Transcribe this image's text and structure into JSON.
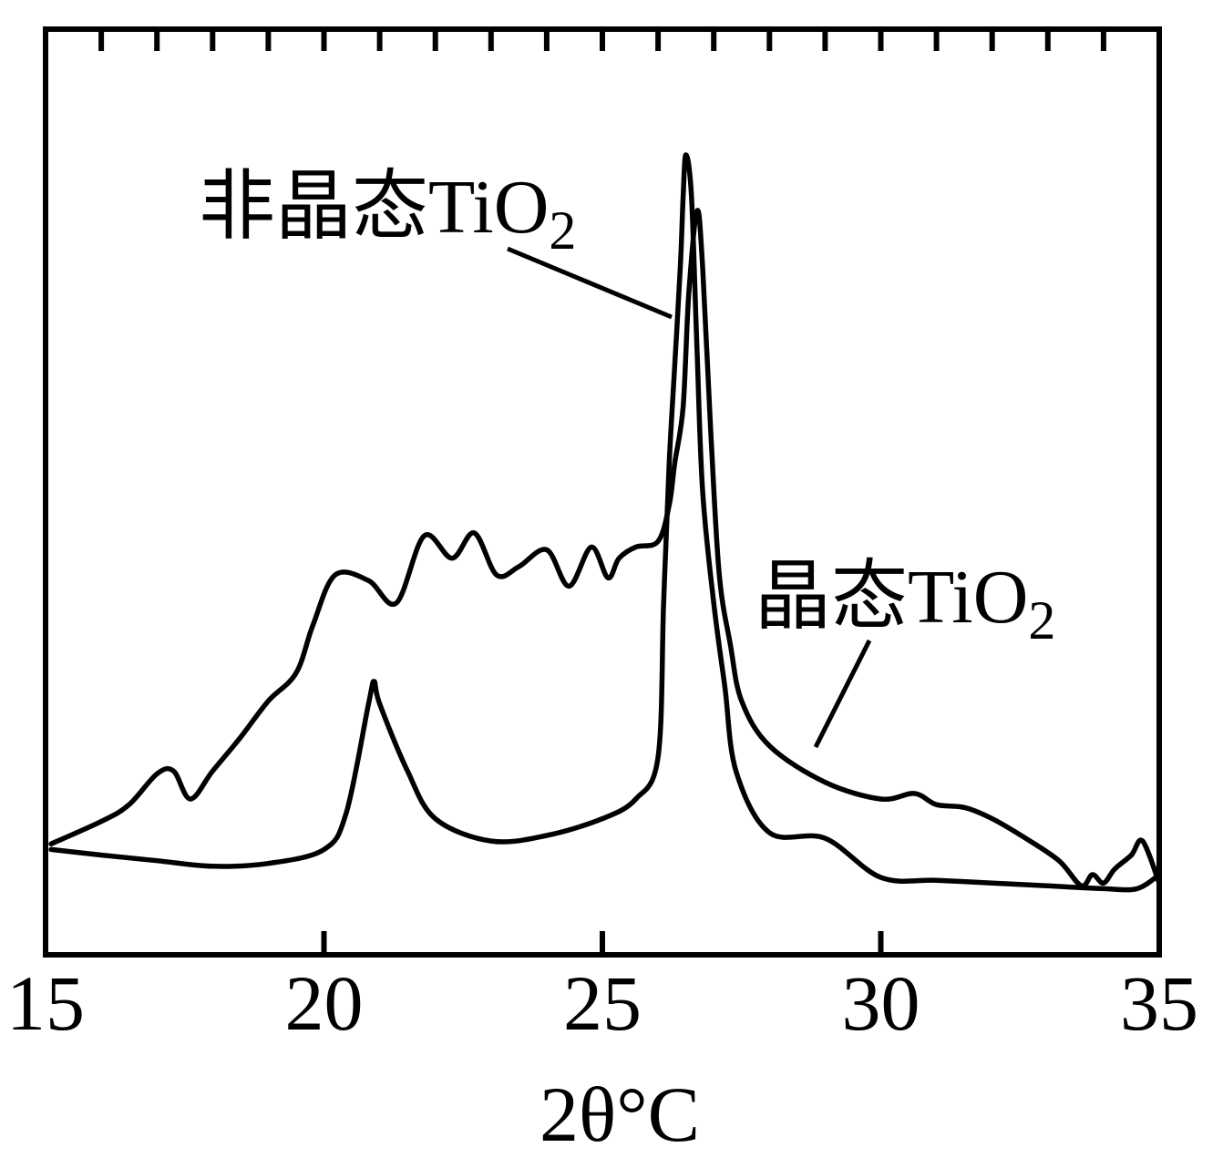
{
  "chart_data": {
    "type": "line",
    "title": "",
    "xlabel": "2θ°C",
    "ylabel": "",
    "xlim": [
      15,
      35
    ],
    "x_ticks": [
      "15",
      "20",
      "25",
      "30",
      "35"
    ],
    "grid": false,
    "series": [
      {
        "name": "非晶态TiO2",
        "label_main": "非晶态TiO",
        "label_sub": "2",
        "x": [
          15.1,
          16.0,
          17.0,
          18.0,
          19.0,
          20.0,
          20.4,
          20.8,
          20.9,
          21.0,
          21.5,
          22.0,
          23.0,
          24.0,
          25.0,
          25.6,
          26.0,
          26.1,
          26.2,
          26.3,
          26.4,
          26.45,
          26.5,
          26.6,
          26.7,
          26.8,
          27.0,
          27.2,
          27.4,
          28.0,
          29.0,
          30.0,
          31.0,
          32.0,
          33.0,
          34.0,
          34.6,
          35.0
        ],
        "y": [
          2.2,
          2.0,
          1.8,
          1.6,
          1.7,
          2.2,
          3.5,
          7.4,
          8.2,
          7.4,
          5.0,
          3.3,
          2.5,
          2.7,
          3.3,
          4.0,
          5.5,
          11.0,
          16.0,
          19.5,
          23.0,
          25.5,
          27.0,
          25.5,
          20.0,
          15.0,
          11.0,
          8.0,
          5.0,
          2.8,
          2.6,
          1.2,
          1.1,
          1.0,
          0.9,
          0.8,
          0.8,
          1.3
        ]
      },
      {
        "name": "晶态TiO2",
        "label_main": "晶态TiO",
        "label_sub": "2",
        "x": [
          15.1,
          16.0,
          16.5,
          17.0,
          17.3,
          17.6,
          18.0,
          18.5,
          19.0,
          19.5,
          19.8,
          20.2,
          20.8,
          21.3,
          21.8,
          22.3,
          22.7,
          23.1,
          23.5,
          24.0,
          24.4,
          24.8,
          25.1,
          25.3,
          25.6,
          26.0,
          26.2,
          26.3,
          26.45,
          26.55,
          26.7,
          26.8,
          26.95,
          27.1,
          27.3,
          27.5,
          28.0,
          29.0,
          30.0,
          30.6,
          31.0,
          31.5,
          32.0,
          32.6,
          33.2,
          33.6,
          33.8,
          34.0,
          34.2,
          34.5,
          34.7,
          35.0
        ],
        "y": [
          2.4,
          3.2,
          3.8,
          4.9,
          5.0,
          4.0,
          5.0,
          6.2,
          7.5,
          8.5,
          10.2,
          12.0,
          11.8,
          11.0,
          13.4,
          12.6,
          13.5,
          12.0,
          12.3,
          12.9,
          11.6,
          13.0,
          11.9,
          12.6,
          13.0,
          13.2,
          14.5,
          16.0,
          18.0,
          22.0,
          25.0,
          23.0,
          17.0,
          12.0,
          9.5,
          7.5,
          5.9,
          4.6,
          4.0,
          4.2,
          3.8,
          3.7,
          3.3,
          2.6,
          1.8,
          0.9,
          1.3,
          1.0,
          1.5,
          2.0,
          2.5,
          1.0
        ]
      }
    ]
  }
}
